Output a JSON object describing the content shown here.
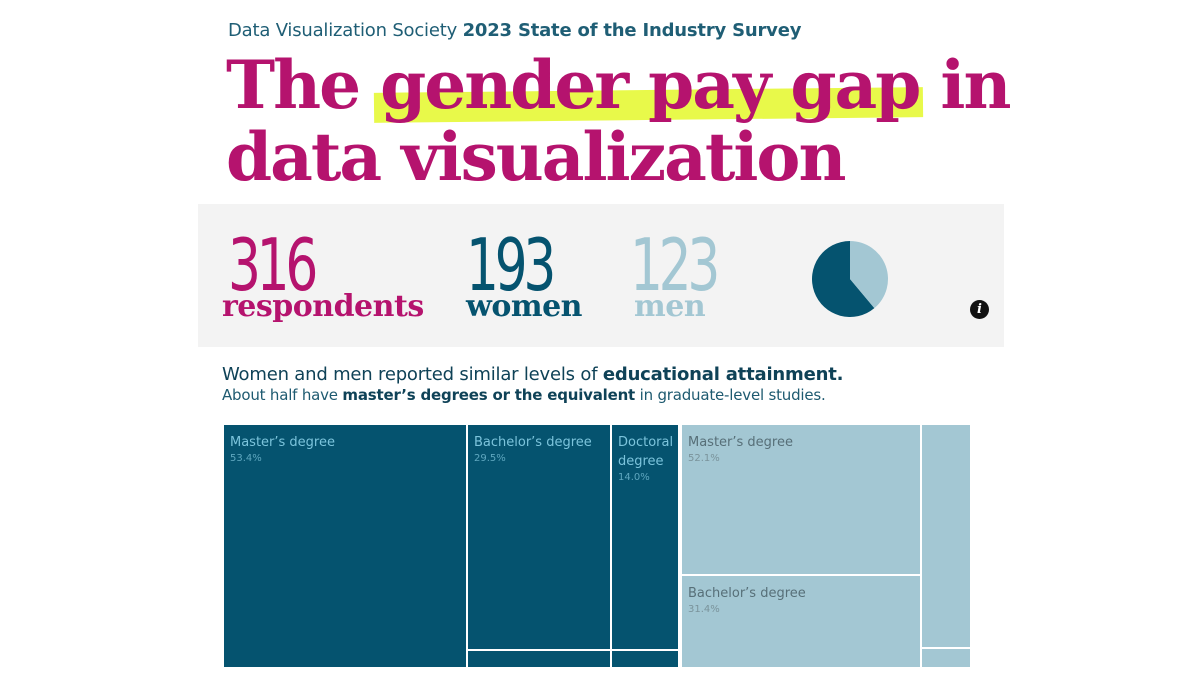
{
  "header": {
    "kicker_org": "Data Visualization Society",
    "kicker_survey": "2023 State of the Industry Survey",
    "title_part1": "The",
    "title_highlight": "gender pay gap",
    "title_part2": "in",
    "title_line2": "data visualization"
  },
  "stats": {
    "total_count": "316",
    "total_label": "respondents",
    "women_count": "193",
    "women_label": "women",
    "men_count": "123",
    "men_label": "men",
    "info_icon": "info-icon"
  },
  "colors": {
    "title": "#b5136e",
    "highlight": "#e8f94a",
    "women": "#05536f",
    "men": "#a3c7d3",
    "panel": "#f3f3f3"
  },
  "subtitle": {
    "line1_pre": "Women and men reported similar levels of",
    "line1_bold": "educational attainment.",
    "line2_pre": "About half have",
    "line2_bold": "master’s degrees or the equivalent",
    "line2_post": "in graduate-level studies."
  },
  "chart_data": [
    {
      "type": "pie",
      "labels": [
        "women",
        "men"
      ],
      "values": [
        193,
        123
      ],
      "colors": [
        "#05536f",
        "#a3c7d3"
      ]
    },
    {
      "type": "treemap",
      "series": [
        {
          "group": "women",
          "items": [
            {
              "label": "Master’s degree",
              "percent": 53.4,
              "display": "53.4%"
            },
            {
              "label": "Bachelor’s degree",
              "percent": 29.5,
              "display": "29.5%"
            },
            {
              "label": "Doctoral degree",
              "percent": 14.0,
              "display": "14.0%"
            },
            {
              "label": "",
              "percent": 2.1
            },
            {
              "label": "",
              "percent": 1.0
            }
          ]
        },
        {
          "group": "men",
          "items": [
            {
              "label": "Master’s degree",
              "percent": 52.1,
              "display": "52.1%"
            },
            {
              "label": "Bachelor’s degree",
              "percent": 31.4,
              "display": "31.4%"
            },
            {
              "label": "",
              "percent": 15.3
            },
            {
              "label": "",
              "percent": 1.2
            }
          ]
        }
      ]
    }
  ]
}
